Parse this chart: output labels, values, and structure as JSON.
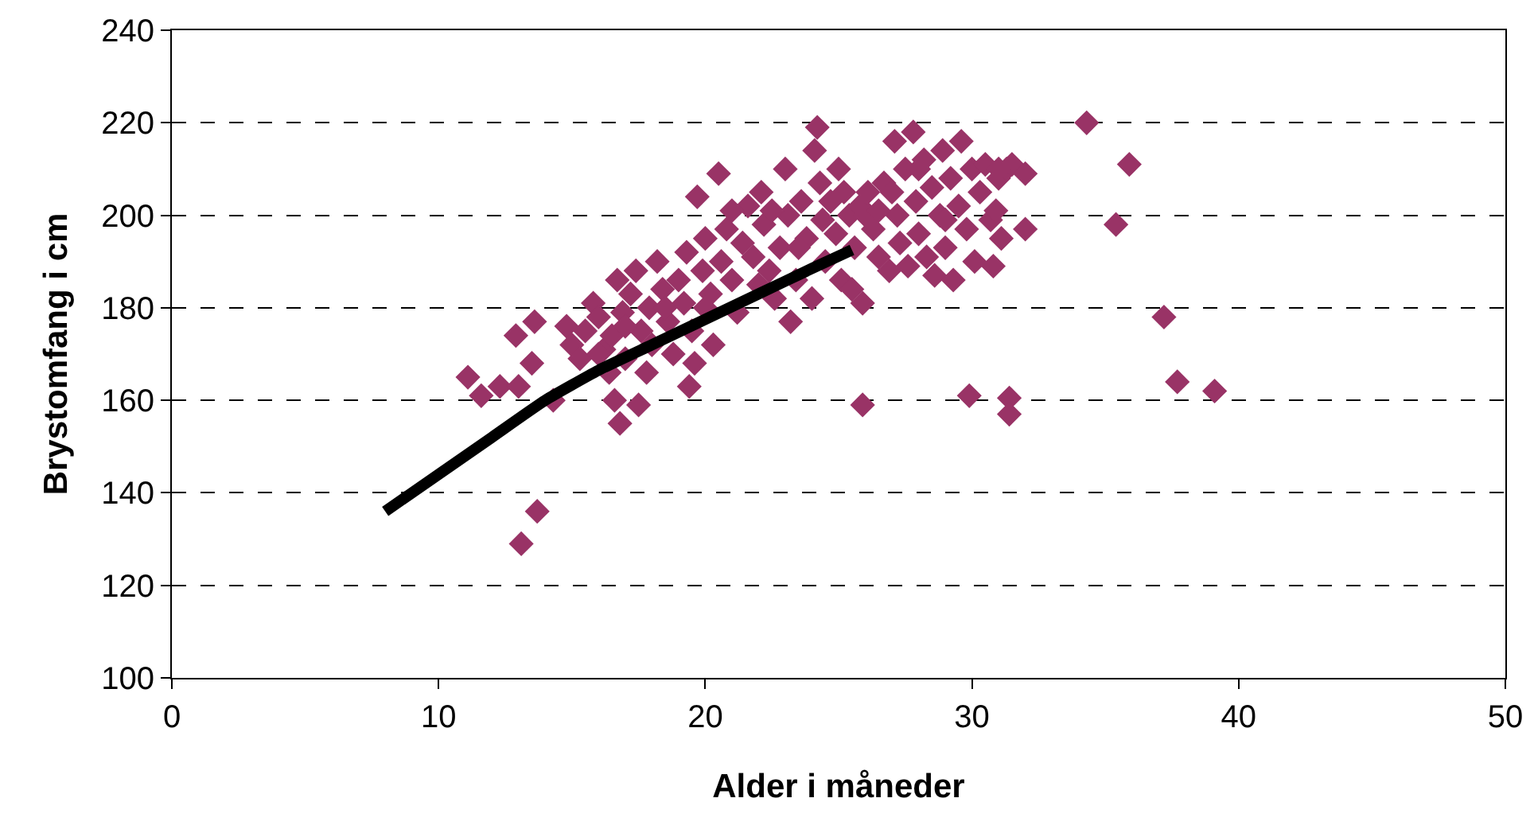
{
  "chart_data": {
    "type": "scatter",
    "xlabel": "Alder i måneder",
    "ylabel": "Brystomfang i cm",
    "xlim": [
      0,
      50
    ],
    "xticks": [
      0,
      10,
      20,
      30,
      40,
      50
    ],
    "ylim": [
      100,
      240
    ],
    "yticks": [
      100,
      120,
      140,
      160,
      180,
      200,
      220,
      240
    ],
    "grid": "y",
    "marker": "diamond",
    "series": [
      {
        "type": "scatter",
        "color": "#993366",
        "x": [
          34.3,
          35.9,
          35.4,
          37.2,
          37.7,
          39.1,
          31.4,
          31.4,
          29.9,
          25.9,
          13.1,
          13.7,
          11.1,
          11.6,
          12.3,
          12.9,
          13.0,
          13.5,
          13.6,
          14.3,
          16.8,
          16.6,
          17.5,
          19.4,
          14.8,
          15.0,
          15.3,
          15.5,
          15.8,
          16.0,
          16.2,
          16.4,
          16.5,
          16.7,
          16.9,
          17.0,
          17.2,
          17.4,
          17.6,
          17.8,
          17.9,
          18.0,
          18.2,
          18.4,
          18.6,
          18.8,
          19.0,
          19.2,
          19.3,
          19.5,
          19.6,
          19.7,
          19.9,
          20.0,
          20.2,
          20.3,
          20.5,
          20.6,
          20.8,
          21.0,
          21.2,
          21.4,
          21.6,
          21.8,
          22.0,
          22.1,
          22.2,
          22.4,
          22.6,
          22.8,
          23.0,
          23.1,
          23.2,
          23.4,
          23.6,
          23.8,
          24.0,
          24.1,
          24.2,
          24.3,
          24.4,
          24.5,
          24.7,
          24.9,
          25.0,
          25.1,
          25.2,
          25.4,
          25.5,
          25.6,
          25.8,
          25.9,
          26.1,
          26.3,
          26.5,
          26.7,
          26.9,
          27.1,
          27.2,
          27.3,
          27.5,
          27.6,
          27.8,
          27.9,
          28.0,
          28.2,
          28.3,
          28.5,
          28.6,
          28.8,
          28.9,
          29.0,
          29.2,
          29.3,
          29.5,
          29.6,
          29.8,
          30.0,
          30.1,
          30.3,
          30.5,
          30.7,
          30.8,
          31.0,
          31.1,
          31.3,
          31.5,
          32.0,
          32.0,
          30.9,
          26.0,
          23.5,
          21.0,
          18.5,
          16.0,
          17.0,
          20.0,
          22.5,
          27.0,
          29.0,
          31.0,
          28.0,
          26.5
        ],
        "values": [
          220,
          211,
          198,
          178,
          164,
          162,
          160.5,
          157,
          161,
          159,
          129,
          136,
          165,
          161,
          163,
          174,
          163,
          168,
          177,
          160,
          155,
          160,
          159,
          163,
          176,
          172,
          169,
          175,
          181,
          178,
          171,
          166,
          174,
          186,
          179,
          169,
          183,
          188,
          175,
          166,
          180,
          172,
          190,
          184,
          177,
          170,
          186,
          181,
          192,
          175,
          168,
          204,
          188,
          195,
          183,
          172,
          209,
          190,
          197,
          186,
          179,
          194,
          202,
          191,
          185,
          205,
          198,
          188,
          182,
          193,
          210,
          200,
          177,
          186,
          203,
          195,
          182,
          214,
          219,
          207,
          199,
          190,
          203,
          196,
          210,
          186,
          205,
          200,
          184,
          193,
          202,
          181,
          205,
          197,
          191,
          207,
          188,
          216,
          200,
          194,
          210,
          189,
          218,
          203,
          196,
          212,
          191,
          206,
          187,
          200,
          214,
          193,
          208,
          186,
          202,
          216,
          197,
          210,
          190,
          205,
          211,
          199,
          189,
          208,
          195,
          210,
          211,
          209,
          197,
          201,
          200,
          193,
          201,
          180,
          170,
          176,
          180,
          201,
          205,
          199,
          210,
          210,
          201
        ]
      },
      {
        "type": "line",
        "color": "#000000",
        "marker": "none",
        "x": [
          8,
          10,
          12,
          14,
          16,
          18,
          20,
          22,
          24,
          25.5
        ],
        "values": [
          136,
          144,
          152,
          160,
          166.5,
          172,
          177.5,
          183,
          188.5,
          192.5
        ]
      }
    ]
  }
}
